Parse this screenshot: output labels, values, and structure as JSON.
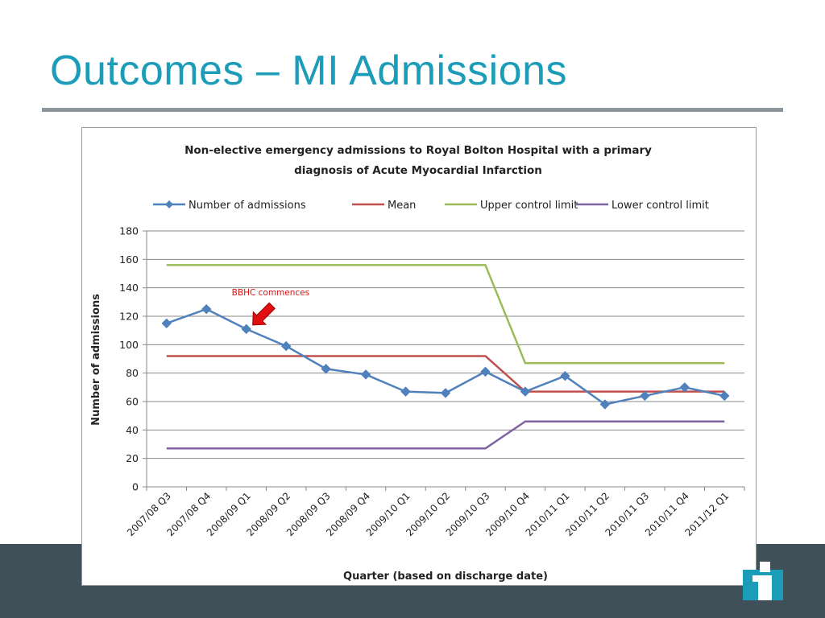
{
  "slide": {
    "title": "Outcomes – MI Admissions"
  },
  "colors": {
    "title": "#1b9cb8",
    "footer": "#3f5059",
    "admissions": "#4f81bd",
    "mean": "#c0504d",
    "ucl": "#9bbb59",
    "lcl": "#8064a2",
    "annotation": "#e01010"
  },
  "logo": {
    "icon": "info-i-logo-icon"
  },
  "chart_data": {
    "type": "line",
    "title_line1": "Non-elective emergency admissions to Royal Bolton Hospital  with a primary",
    "title_line2": "diagnosis of Acute Myocardial Infarction",
    "xlabel": "Quarter (based on discharge date)",
    "ylabel": "Number of admissions",
    "ylim": [
      0,
      180
    ],
    "yticks": [
      "0",
      "20",
      "40",
      "60",
      "80",
      "100",
      "120",
      "140",
      "160",
      "180"
    ],
    "grid": true,
    "legend_position": "top",
    "categories": [
      "2007/08 Q3",
      "2007/08 Q4",
      "2008/09 Q1",
      "2008/09 Q2",
      "2008/09 Q3",
      "2008/09 Q4",
      "2009/10 Q1",
      "2009/10 Q2",
      "2009/10 Q3",
      "2009/10 Q4",
      "2010/11 Q1",
      "2010/11 Q2",
      "2010/11 Q3",
      "2010/11 Q4",
      "2011/12 Q1"
    ],
    "series": [
      {
        "name": "Number of admissions",
        "values": [
          115,
          125,
          111,
          99,
          83,
          79,
          67,
          66,
          81,
          67,
          78,
          58,
          64,
          70,
          64
        ],
        "marker": "diamond"
      },
      {
        "name": "Mean",
        "values": [
          92,
          92,
          92,
          92,
          92,
          92,
          92,
          92,
          92,
          67,
          67,
          67,
          67,
          67,
          67
        ]
      },
      {
        "name": "Upper control limit",
        "values": [
          156,
          156,
          156,
          156,
          156,
          156,
          156,
          156,
          156,
          87,
          87,
          87,
          87,
          87,
          87
        ]
      },
      {
        "name": "Lower control limit",
        "values": [
          27,
          27,
          27,
          27,
          27,
          27,
          27,
          27,
          27,
          46,
          46,
          46,
          46,
          46,
          46
        ]
      }
    ],
    "annotation": {
      "text": "BBHC commences",
      "category_index": 2
    }
  }
}
